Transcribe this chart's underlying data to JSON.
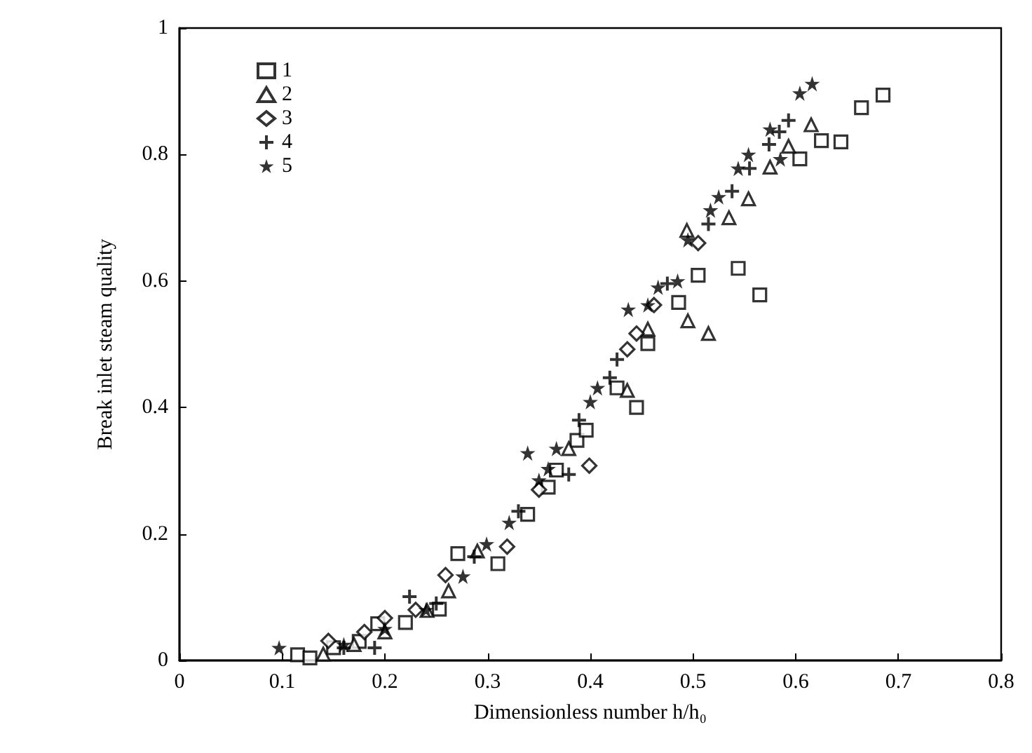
{
  "chart_data": {
    "type": "scatter",
    "xlabel": "Dimensionless number h/h₀",
    "ylabel": "Break inlet steam quality",
    "xlim": [
      0,
      0.8
    ],
    "xticks": [
      0,
      0.1,
      0.2,
      0.3,
      0.4,
      0.5,
      0.6,
      0.7,
      0.8
    ],
    "ylim": [
      0,
      1
    ],
    "yticks": [
      0,
      0.2,
      0.4,
      0.6,
      0.8,
      1
    ],
    "grid": false,
    "legend": "top left",
    "series": [
      {
        "name": "1",
        "color": "#000000",
        "marker": "square",
        "x": [
          0.115,
          0.127,
          0.15,
          0.175,
          0.193,
          0.22,
          0.253,
          0.271,
          0.31,
          0.339,
          0.359,
          0.367,
          0.387,
          0.396,
          0.426,
          0.445,
          0.456,
          0.486,
          0.505,
          0.544,
          0.565,
          0.604,
          0.625,
          0.644,
          0.664,
          0.685
        ],
        "values": [
          0.009,
          0.004,
          0.02,
          0.03,
          0.058,
          0.06,
          0.081,
          0.169,
          0.153,
          0.231,
          0.274,
          0.301,
          0.348,
          0.364,
          0.431,
          0.4,
          0.501,
          0.566,
          0.609,
          0.62,
          0.578,
          0.793,
          0.822,
          0.82,
          0.874,
          0.894
        ]
      },
      {
        "name": "2",
        "color": "#000000",
        "marker": "triangle",
        "x": [
          0.14,
          0.17,
          0.2,
          0.241,
          0.262,
          0.29,
          0.379,
          0.436,
          0.456,
          0.494,
          0.495,
          0.515,
          0.535,
          0.554,
          0.575,
          0.593,
          0.615
        ],
        "values": [
          0.01,
          0.025,
          0.045,
          0.079,
          0.11,
          0.173,
          0.335,
          0.427,
          0.524,
          0.68,
          0.537,
          0.517,
          0.7,
          0.73,
          0.78,
          0.813,
          0.847
        ]
      },
      {
        "name": "3",
        "color": "#000000",
        "marker": "diamond",
        "x": [
          0.145,
          0.18,
          0.2,
          0.23,
          0.259,
          0.319,
          0.35,
          0.399,
          0.436,
          0.445,
          0.462,
          0.505
        ],
        "values": [
          0.031,
          0.045,
          0.067,
          0.08,
          0.135,
          0.18,
          0.27,
          0.308,
          0.492,
          0.517,
          0.562,
          0.66
        ]
      },
      {
        "name": "4",
        "color": "#000000",
        "marker": "cross",
        "x": [
          0.16,
          0.19,
          0.224,
          0.25,
          0.287,
          0.33,
          0.379,
          0.389,
          0.419,
          0.426,
          0.475,
          0.515,
          0.538,
          0.555,
          0.574,
          0.584,
          0.593
        ],
        "values": [
          0.02,
          0.02,
          0.101,
          0.09,
          0.164,
          0.236,
          0.294,
          0.38,
          0.447,
          0.476,
          0.596,
          0.69,
          0.742,
          0.778,
          0.816,
          0.836,
          0.854
        ]
      },
      {
        "name": "5",
        "color": "#000000",
        "marker": "star",
        "x": [
          0.097,
          0.16,
          0.2,
          0.24,
          0.276,
          0.299,
          0.321,
          0.339,
          0.35,
          0.359,
          0.367,
          0.4,
          0.407,
          0.437,
          0.456,
          0.466,
          0.485,
          0.495,
          0.517,
          0.525,
          0.544,
          0.554,
          0.575,
          0.585,
          0.604,
          0.616
        ],
        "values": [
          0.02,
          0.025,
          0.05,
          0.08,
          0.133,
          0.184,
          0.218,
          0.328,
          0.285,
          0.303,
          0.335,
          0.409,
          0.431,
          0.555,
          0.562,
          0.59,
          0.6,
          0.665,
          0.712,
          0.733,
          0.778,
          0.8,
          0.84,
          0.793,
          0.897,
          0.912
        ]
      }
    ]
  }
}
